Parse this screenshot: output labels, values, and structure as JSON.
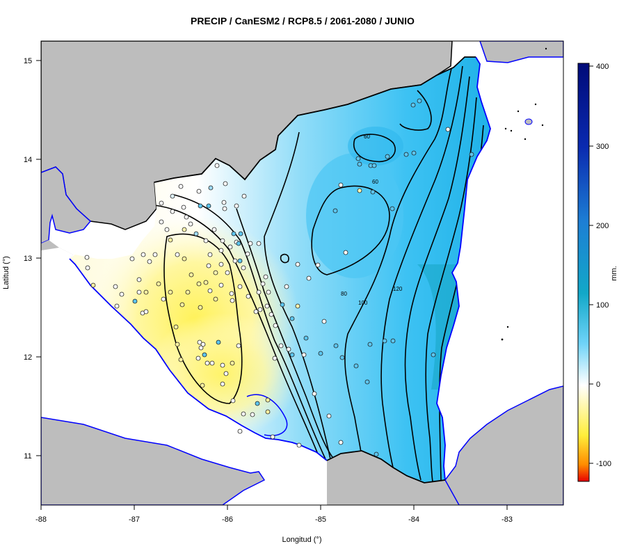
{
  "title": "PRECIP / CanESM2 / RCP8.5 / 2061-2080 / JUNIO",
  "axes": {
    "x_label": "Longitud (°)",
    "y_label": "Latitud (°)",
    "x_ticks": [
      "-88",
      "-87",
      "-86",
      "-85",
      "-84",
      "-83"
    ],
    "y_ticks": [
      "11",
      "12",
      "13",
      "14",
      "15"
    ]
  },
  "colorbar": {
    "unit": "mm.",
    "ticks": [
      "400",
      "300",
      "200",
      "100",
      "0",
      "-100"
    ],
    "range": [
      -120,
      405
    ],
    "colors": [
      "#e80000",
      "#ff8c00",
      "#ffee3a",
      "#ffffff",
      "#3fc4f5",
      "#12a8c8",
      "#1d7fd4",
      "#0a2ab0",
      "#000a78"
    ]
  },
  "contour_labels": [
    "60",
    "80",
    "100",
    "120",
    "60"
  ],
  "map": {
    "land_color": "#bdbdbd",
    "coast_color": "#0000ff",
    "border_color": "#000000",
    "lon_range": [
      -88,
      -82.4
    ],
    "lat_range": [
      10.5,
      15.2
    ]
  }
}
